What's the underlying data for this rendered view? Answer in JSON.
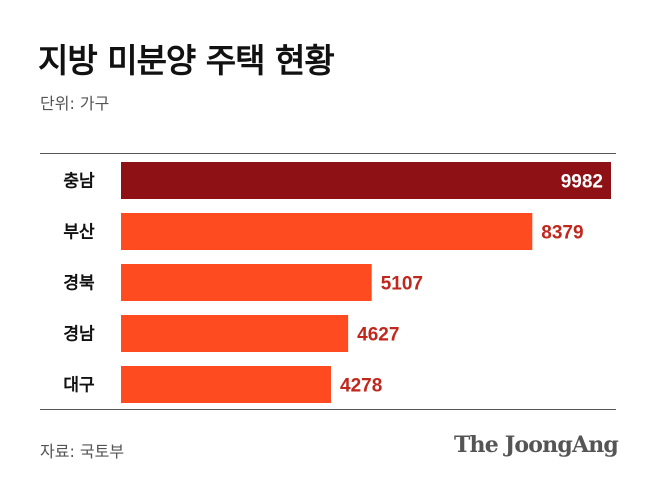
{
  "title": "지방 미분양 주택 현황",
  "unit_label": "단위: 가구",
  "source_label": "자료: 국토부",
  "logo_text": "The JoongAng",
  "colors": {
    "highlight_bar": "#8e1116",
    "bar": "#ff4b1f",
    "value_label": "#c0271d",
    "value_label_inside": "#ffffff"
  },
  "chart_data": {
    "type": "bar",
    "orientation": "horizontal",
    "categories": [
      "충남",
      "부산",
      "경북",
      "경남",
      "대구"
    ],
    "values": [
      9982,
      8379,
      5107,
      4627,
      4278
    ],
    "highlight_index": 0,
    "title": "지방 미분양 주택 현황",
    "unit": "가구",
    "xlabel": "",
    "ylabel": "",
    "xlim": [
      0,
      9982
    ],
    "grid": false,
    "legend": "none"
  }
}
